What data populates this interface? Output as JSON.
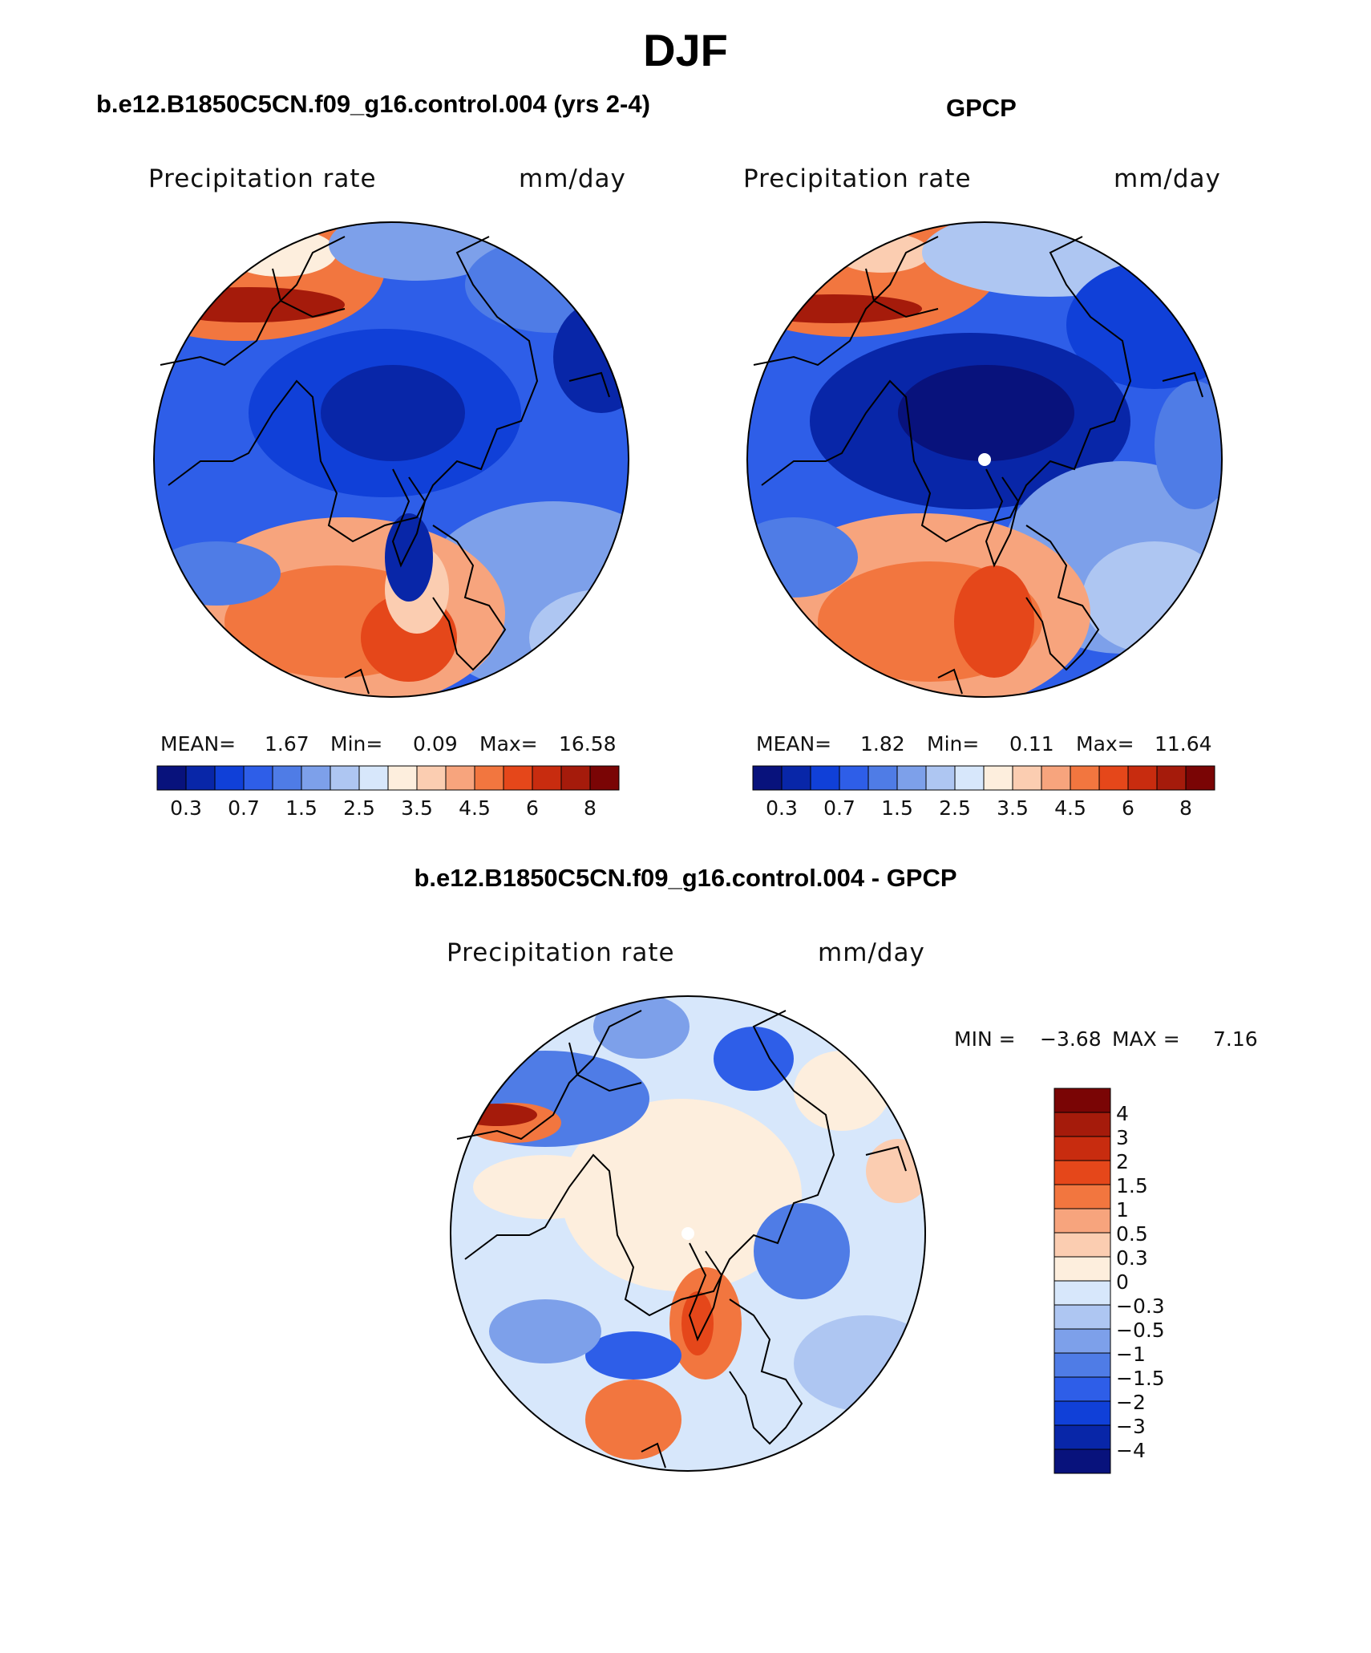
{
  "figure": {
    "title": "DJF",
    "colors": {
      "abs_scale": [
        "#08127c",
        "#0826a8",
        "#1040d8",
        "#2e5ee8",
        "#4f7ce6",
        "#7da0ea",
        "#aec6f2",
        "#d7e7fb",
        "#fdeedd",
        "#fbcdb1",
        "#f7a47d",
        "#f2763f",
        "#e5471a",
        "#c82c0f",
        "#a51b0b",
        "#7a0505"
      ],
      "diff_scale": [
        "#7a0505",
        "#a51b0b",
        "#c82c0f",
        "#e5471a",
        "#f2763f",
        "#f7a47d",
        "#fbcdb1",
        "#fdeedd",
        "#d7e7fb",
        "#aec6f2",
        "#7da0ea",
        "#4f7ce6",
        "#2e5ee8",
        "#1040d8",
        "#0826a8",
        "#08127c"
      ]
    }
  },
  "panels": {
    "model": {
      "title": "b.e12.B1850C5CN.f09_g16.control.004 (yrs 2-4)",
      "variable": "Precipitation rate",
      "units": "mm/day",
      "stats": {
        "mean_label": "MEAN=",
        "mean": "1.67",
        "min_label": "Min=",
        "min": "0.09",
        "max_label": "Max=",
        "max": "16.58"
      },
      "colorbar_ticks": [
        "0.3",
        "0.7",
        "1.5",
        "2.5",
        "3.5",
        "4.5",
        "6",
        "8"
      ]
    },
    "obs": {
      "title": "GPCP",
      "variable": "Precipitation rate",
      "units": "mm/day",
      "stats": {
        "mean_label": "MEAN=",
        "mean": "1.82",
        "min_label": "Min=",
        "min": "0.11",
        "max_label": "Max=",
        "max": "11.64"
      },
      "colorbar_ticks": [
        "0.3",
        "0.7",
        "1.5",
        "2.5",
        "3.5",
        "4.5",
        "6",
        "8"
      ]
    },
    "diff": {
      "title": "b.e12.B1850C5CN.f09_g16.control.004 - GPCP",
      "variable": "Precipitation rate",
      "units": "mm/day",
      "stats": {
        "min_label": "MIN =",
        "min": "−3.68",
        "max_label": "MAX =",
        "max": "7.16"
      },
      "colorbar_ticks": [
        "4",
        "3",
        "2",
        "1.5",
        "1",
        "0.5",
        "0.3",
        "0",
        "−0.3",
        "−0.5",
        "−1",
        "−1.5",
        "−2",
        "−3",
        "−4"
      ]
    }
  }
}
